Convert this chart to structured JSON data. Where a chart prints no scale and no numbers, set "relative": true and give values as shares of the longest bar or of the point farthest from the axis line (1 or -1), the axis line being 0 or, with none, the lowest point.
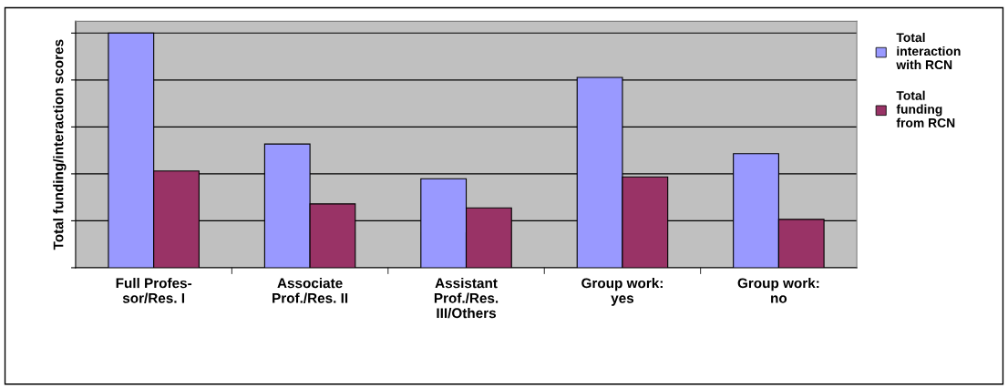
{
  "chart_data": {
    "type": "bar",
    "relative": true,
    "ylabel": "Total funding/interaction scores",
    "categories": [
      "Full Profes-\nsor/Res. I",
      "Associate\nProf./Res. II",
      "Assistant\nProf./Res.\nIII/Others",
      "Group work:\nyes",
      "Group work:\nno"
    ],
    "series": [
      {
        "name": "Total\ninteraction\nwith RCN",
        "color": "#9999ff",
        "values": [
          1,
          0.527,
          0.379,
          0.811,
          0.486
        ]
      },
      {
        "name": "Total\nfunding\nfrom RCN",
        "color": "#993366",
        "values": [
          0.412,
          0.272,
          0.255,
          0.387,
          0.206
        ]
      }
    ],
    "grid": "y",
    "legend": "right"
  }
}
